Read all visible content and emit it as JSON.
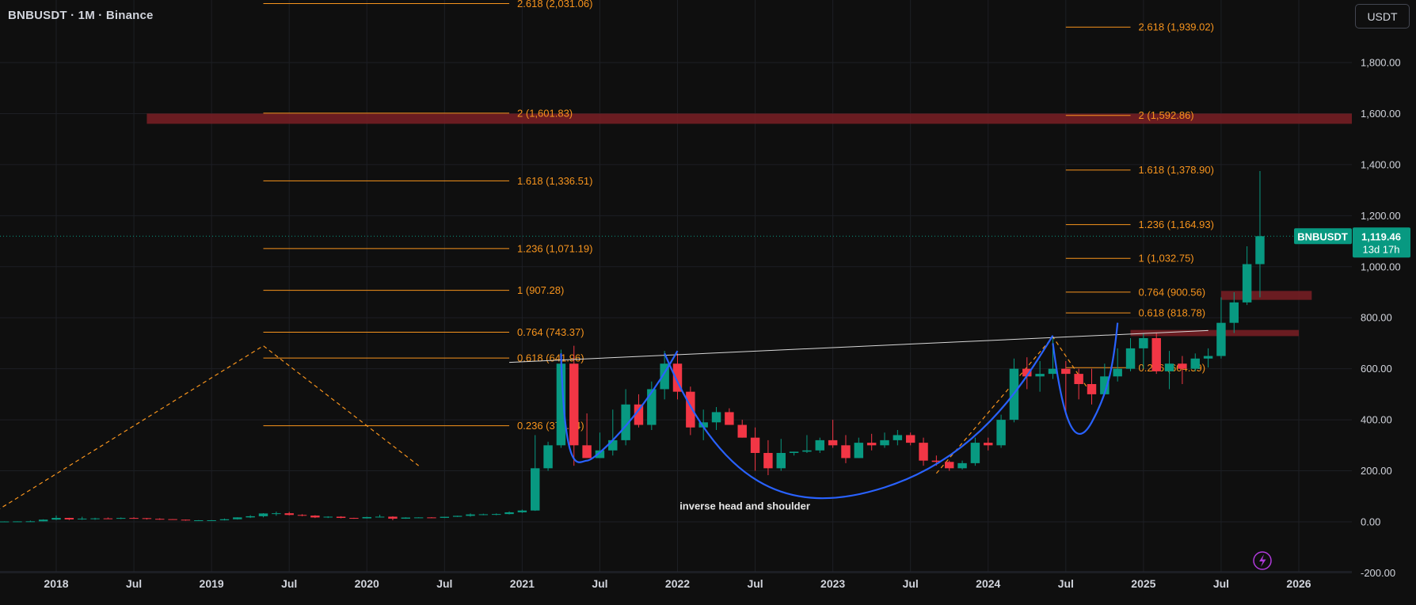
{
  "header": {
    "symbol_title": "BNBUSDT · 1M · Binance",
    "currency_button": "USDT"
  },
  "colors": {
    "background": "#0f0f0f",
    "grid": "#1d1f24",
    "up": "#089981",
    "down": "#f23645",
    "fib": "#f7941d",
    "resistance_zone": "#7a1e24",
    "trendline": "#d8d8d8",
    "pattern_curve": "#2962ff",
    "price_tag": "#089981"
  },
  "chart_data": {
    "type": "candlestick",
    "symbol": "BNBUSDT",
    "interval": "1M",
    "exchange": "Binance",
    "y_axis": {
      "range": [
        -200,
        2050
      ],
      "ticks": [
        -200,
        0,
        200,
        400,
        600,
        800,
        1000,
        1200,
        1400,
        1600,
        1800
      ],
      "tick_labels": [
        "-200.00",
        "0.00",
        "200.00",
        "400.00",
        "600.00",
        "800.00",
        "1,000.00",
        "1,200.00",
        "1,400.00",
        "1,600.00",
        "1,800.00"
      ],
      "position": "right"
    },
    "x_axis": {
      "range": [
        "2017-07",
        "2026-10"
      ],
      "ticks": [
        "2018-01",
        "2018-07",
        "2019-01",
        "2019-07",
        "2020-01",
        "2020-07",
        "2021-01",
        "2021-07",
        "2022-01",
        "2022-07",
        "2023-01",
        "2023-07",
        "2024-01",
        "2024-07",
        "2025-01",
        "2025-07",
        "2026-01"
      ],
      "tick_labels": [
        "2018",
        "Jul",
        "2019",
        "Jul",
        "2020",
        "Jul",
        "2021",
        "Jul",
        "2022",
        "Jul",
        "2023",
        "Jul",
        "2024",
        "Jul",
        "2025",
        "Jul",
        "2026"
      ]
    },
    "grid": true,
    "candles": [
      {
        "t": "2017-08",
        "o": 0.1,
        "h": 1,
        "l": 0.1,
        "c": 0.5
      },
      {
        "t": "2017-09",
        "o": 0.5,
        "h": 2,
        "l": 0.3,
        "c": 1.5
      },
      {
        "t": "2017-10",
        "o": 1.5,
        "h": 2,
        "l": 1,
        "c": 1.8
      },
      {
        "t": "2017-11",
        "o": 1.8,
        "h": 5,
        "l": 1.5,
        "c": 2.1
      },
      {
        "t": "2017-12",
        "o": 2.1,
        "h": 10,
        "l": 2,
        "c": 8.7
      },
      {
        "t": "2018-01",
        "o": 8.7,
        "h": 25,
        "l": 7,
        "c": 15.5
      },
      {
        "t": "2018-02",
        "o": 15.5,
        "h": 16,
        "l": 7,
        "c": 9.6
      },
      {
        "t": "2018-03",
        "o": 9.6,
        "h": 20,
        "l": 8,
        "c": 12.7
      },
      {
        "t": "2018-04",
        "o": 12.7,
        "h": 16,
        "l": 8,
        "c": 13.6
      },
      {
        "t": "2018-05",
        "o": 13.6,
        "h": 17,
        "l": 11,
        "c": 12.6
      },
      {
        "t": "2018-06",
        "o": 12.6,
        "h": 17,
        "l": 11,
        "c": 15.2
      },
      {
        "t": "2018-07",
        "o": 15.2,
        "h": 18,
        "l": 13,
        "c": 14.5
      },
      {
        "t": "2018-08",
        "o": 14.5,
        "h": 15,
        "l": 9,
        "c": 11.8
      },
      {
        "t": "2018-09",
        "o": 11.8,
        "h": 14,
        "l": 8,
        "c": 10.6
      },
      {
        "t": "2018-10",
        "o": 10.6,
        "h": 11,
        "l": 8,
        "c": 8.5
      },
      {
        "t": "2018-11",
        "o": 8.5,
        "h": 9,
        "l": 4.5,
        "c": 5.9
      },
      {
        "t": "2018-12",
        "o": 5.9,
        "h": 7,
        "l": 4.2,
        "c": 6.1
      },
      {
        "t": "2019-01",
        "o": 6.1,
        "h": 7,
        "l": 4.8,
        "c": 6.3
      },
      {
        "t": "2019-02",
        "o": 6.3,
        "h": 13,
        "l": 5.5,
        "c": 10.2
      },
      {
        "t": "2019-03",
        "o": 10.2,
        "h": 18,
        "l": 9,
        "c": 17.5
      },
      {
        "t": "2019-04",
        "o": 17.5,
        "h": 26,
        "l": 15,
        "c": 22
      },
      {
        "t": "2019-05",
        "o": 22,
        "h": 34,
        "l": 18,
        "c": 32.9
      },
      {
        "t": "2019-06",
        "o": 32.9,
        "h": 40,
        "l": 24,
        "c": 33.7
      },
      {
        "t": "2019-07",
        "o": 33.7,
        "h": 39,
        "l": 25,
        "c": 27.1
      },
      {
        "t": "2019-08",
        "o": 27.1,
        "h": 30,
        "l": 22,
        "c": 24.5
      },
      {
        "t": "2019-09",
        "o": 24.5,
        "h": 26,
        "l": 15,
        "c": 17.3
      },
      {
        "t": "2019-10",
        "o": 17.3,
        "h": 22,
        "l": 15,
        "c": 20.2
      },
      {
        "t": "2019-11",
        "o": 20.2,
        "h": 22,
        "l": 14,
        "c": 15.4
      },
      {
        "t": "2019-12",
        "o": 15.4,
        "h": 16,
        "l": 12,
        "c": 13.7
      },
      {
        "t": "2020-01",
        "o": 13.7,
        "h": 20,
        "l": 13,
        "c": 18.8
      },
      {
        "t": "2020-02",
        "o": 18.8,
        "h": 28,
        "l": 17,
        "c": 20.3
      },
      {
        "t": "2020-03",
        "o": 20.3,
        "h": 22,
        "l": 6.4,
        "c": 12.5
      },
      {
        "t": "2020-04",
        "o": 12.5,
        "h": 18,
        "l": 12,
        "c": 16.9
      },
      {
        "t": "2020-05",
        "o": 16.9,
        "h": 18,
        "l": 15,
        "c": 17.4
      },
      {
        "t": "2020-06",
        "o": 17.4,
        "h": 18.5,
        "l": 15,
        "c": 15.7
      },
      {
        "t": "2020-07",
        "o": 15.7,
        "h": 20,
        "l": 15,
        "c": 19.8
      },
      {
        "t": "2020-08",
        "o": 19.8,
        "h": 24,
        "l": 19,
        "c": 23.6
      },
      {
        "t": "2020-09",
        "o": 23.6,
        "h": 33,
        "l": 20,
        "c": 29.1
      },
      {
        "t": "2020-10",
        "o": 29.1,
        "h": 32,
        "l": 26,
        "c": 29.7
      },
      {
        "t": "2020-11",
        "o": 29.7,
        "h": 33,
        "l": 26,
        "c": 30.6
      },
      {
        "t": "2020-12",
        "o": 30.6,
        "h": 41,
        "l": 29,
        "c": 37.4
      },
      {
        "t": "2021-01",
        "o": 37.4,
        "h": 48,
        "l": 35,
        "c": 44.4
      },
      {
        "t": "2021-02",
        "o": 44.4,
        "h": 340,
        "l": 43,
        "c": 210
      },
      {
        "t": "2021-03",
        "o": 210,
        "h": 314,
        "l": 200,
        "c": 300
      },
      {
        "t": "2021-04",
        "o": 300,
        "h": 675,
        "l": 290,
        "c": 620
      },
      {
        "t": "2021-05",
        "o": 620,
        "h": 690,
        "l": 220,
        "c": 300
      },
      {
        "t": "2021-06",
        "o": 300,
        "h": 425,
        "l": 250,
        "c": 250
      },
      {
        "t": "2021-07",
        "o": 250,
        "h": 350,
        "l": 250,
        "c": 280
      },
      {
        "t": "2021-08",
        "o": 280,
        "h": 440,
        "l": 260,
        "c": 320
      },
      {
        "t": "2021-09",
        "o": 320,
        "h": 520,
        "l": 300,
        "c": 460
      },
      {
        "t": "2021-10",
        "o": 460,
        "h": 500,
        "l": 370,
        "c": 380
      },
      {
        "t": "2021-11",
        "o": 380,
        "h": 550,
        "l": 360,
        "c": 520
      },
      {
        "t": "2021-12",
        "o": 520,
        "h": 670,
        "l": 480,
        "c": 620
      },
      {
        "t": "2022-01",
        "o": 620,
        "h": 660,
        "l": 480,
        "c": 510
      },
      {
        "t": "2022-02",
        "o": 510,
        "h": 530,
        "l": 340,
        "c": 370
      },
      {
        "t": "2022-03",
        "o": 370,
        "h": 440,
        "l": 320,
        "c": 390
      },
      {
        "t": "2022-04",
        "o": 390,
        "h": 450,
        "l": 360,
        "c": 430
      },
      {
        "t": "2022-05",
        "o": 430,
        "h": 445,
        "l": 380,
        "c": 380
      },
      {
        "t": "2022-06",
        "o": 380,
        "h": 400,
        "l": 330,
        "c": 330
      },
      {
        "t": "2022-07",
        "o": 330,
        "h": 370,
        "l": 200,
        "c": 270
      },
      {
        "t": "2022-08",
        "o": 270,
        "h": 320,
        "l": 183,
        "c": 210
      },
      {
        "t": "2022-09",
        "o": 210,
        "h": 325,
        "l": 200,
        "c": 270
      },
      {
        "t": "2022-10",
        "o": 270,
        "h": 275,
        "l": 260,
        "c": 275
      },
      {
        "t": "2022-11",
        "o": 275,
        "h": 340,
        "l": 270,
        "c": 280
      },
      {
        "t": "2022-12",
        "o": 280,
        "h": 330,
        "l": 270,
        "c": 320
      },
      {
        "t": "2023-01",
        "o": 320,
        "h": 400,
        "l": 290,
        "c": 300
      },
      {
        "t": "2023-02",
        "o": 300,
        "h": 340,
        "l": 230,
        "c": 250
      },
      {
        "t": "2023-03",
        "o": 250,
        "h": 330,
        "l": 250,
        "c": 310
      },
      {
        "t": "2023-04",
        "o": 310,
        "h": 345,
        "l": 280,
        "c": 300
      },
      {
        "t": "2023-05",
        "o": 300,
        "h": 350,
        "l": 290,
        "c": 320
      },
      {
        "t": "2023-06",
        "o": 320,
        "h": 360,
        "l": 300,
        "c": 340
      },
      {
        "t": "2023-07",
        "o": 340,
        "h": 350,
        "l": 300,
        "c": 310
      },
      {
        "t": "2023-08",
        "o": 310,
        "h": 330,
        "l": 220,
        "c": 240
      },
      {
        "t": "2023-09",
        "o": 240,
        "h": 260,
        "l": 220,
        "c": 235
      },
      {
        "t": "2023-10",
        "o": 235,
        "h": 240,
        "l": 200,
        "c": 210
      },
      {
        "t": "2023-11",
        "o": 210,
        "h": 240,
        "l": 205,
        "c": 230
      },
      {
        "t": "2023-12",
        "o": 230,
        "h": 330,
        "l": 220,
        "c": 310
      },
      {
        "t": "2024-01",
        "o": 310,
        "h": 330,
        "l": 280,
        "c": 300
      },
      {
        "t": "2024-02",
        "o": 300,
        "h": 420,
        "l": 290,
        "c": 400
      },
      {
        "t": "2024-03",
        "o": 400,
        "h": 640,
        "l": 390,
        "c": 600
      },
      {
        "t": "2024-04",
        "o": 600,
        "h": 645,
        "l": 520,
        "c": 570
      },
      {
        "t": "2024-05",
        "o": 570,
        "h": 630,
        "l": 510,
        "c": 580
      },
      {
        "t": "2024-06",
        "o": 580,
        "h": 720,
        "l": 560,
        "c": 600
      },
      {
        "t": "2024-07",
        "o": 600,
        "h": 630,
        "l": 420,
        "c": 580
      },
      {
        "t": "2024-08",
        "o": 580,
        "h": 600,
        "l": 480,
        "c": 540
      },
      {
        "t": "2024-09",
        "o": 540,
        "h": 600,
        "l": 460,
        "c": 500
      },
      {
        "t": "2024-10",
        "o": 500,
        "h": 620,
        "l": 500,
        "c": 570
      },
      {
        "t": "2024-11",
        "o": 570,
        "h": 680,
        "l": 550,
        "c": 600
      },
      {
        "t": "2024-12",
        "o": 600,
        "h": 720,
        "l": 590,
        "c": 680
      },
      {
        "t": "2025-01",
        "o": 680,
        "h": 740,
        "l": 600,
        "c": 720
      },
      {
        "t": "2025-02",
        "o": 720,
        "h": 740,
        "l": 580,
        "c": 590
      },
      {
        "t": "2025-03",
        "o": 590,
        "h": 670,
        "l": 520,
        "c": 620
      },
      {
        "t": "2025-04",
        "o": 620,
        "h": 650,
        "l": 540,
        "c": 600
      },
      {
        "t": "2025-05",
        "o": 600,
        "h": 660,
        "l": 590,
        "c": 640
      },
      {
        "t": "2025-06",
        "o": 640,
        "h": 680,
        "l": 605,
        "c": 650
      },
      {
        "t": "2025-07",
        "o": 650,
        "h": 880,
        "l": 640,
        "c": 780
      },
      {
        "t": "2025-08",
        "o": 780,
        "h": 900,
        "l": 740,
        "c": 860
      },
      {
        "t": "2025-09",
        "o": 860,
        "h": 1080,
        "l": 850,
        "c": 1010
      },
      {
        "t": "2025-10",
        "o": 1010,
        "h": 1375,
        "l": 880,
        "c": 1119.46
      }
    ],
    "fib_levels": [
      {
        "group": "left",
        "ratio": "2.618",
        "price": 2031.06,
        "label": "2.618 (2,031.06)"
      },
      {
        "group": "left",
        "ratio": "2",
        "price": 1601.83,
        "label": "2 (1,601.83)"
      },
      {
        "group": "left",
        "ratio": "1.618",
        "price": 1336.51,
        "label": "1.618 (1,336.51)"
      },
      {
        "group": "left",
        "ratio": "1.236",
        "price": 1071.19,
        "label": "1.236 (1,071.19)"
      },
      {
        "group": "left",
        "ratio": "1",
        "price": 907.28,
        "label": "1 (907.28)"
      },
      {
        "group": "left",
        "ratio": "0.764",
        "price": 743.37,
        "label": "0.764 (743.37)"
      },
      {
        "group": "left",
        "ratio": "0.618",
        "price": 641.96,
        "label": "0.618 (641.96)"
      },
      {
        "group": "left",
        "ratio": "0.236",
        "price": 376.64,
        "label": "0.236 (376.64)"
      },
      {
        "group": "right",
        "ratio": "2.618",
        "price": 1939.02,
        "label": "2.618 (1,939.02)"
      },
      {
        "group": "right",
        "ratio": "2",
        "price": 1592.86,
        "label": "2 (1,592.86)"
      },
      {
        "group": "right",
        "ratio": "1.618",
        "price": 1378.9,
        "label": "1.618 (1,378.90)"
      },
      {
        "group": "right",
        "ratio": "1.236",
        "price": 1164.93,
        "label": "1.236 (1,164.93)"
      },
      {
        "group": "right",
        "ratio": "1",
        "price": 1032.75,
        "label": "1 (1,032.75)"
      },
      {
        "group": "right",
        "ratio": "0.764",
        "price": 900.56,
        "label": "0.764 (900.56)"
      },
      {
        "group": "right",
        "ratio": "0.618",
        "price": 818.78,
        "label": "0.618 (818.78)"
      },
      {
        "group": "right",
        "ratio": "0.236",
        "price": 604.39,
        "label": "0.236 (604.39)"
      }
    ],
    "fib_group_spans": {
      "left": [
        "2019-05",
        "2020-12"
      ],
      "right": [
        "2024-07",
        "2024-12"
      ]
    },
    "fib_extension_paths": [
      [
        {
          "t": "2017-07",
          "p": 0
        },
        {
          "t": "2019-05",
          "p": 690
        },
        {
          "t": "2020-05",
          "p": 220
        }
      ],
      [
        {
          "t": "2023-09",
          "p": 190
        },
        {
          "t": "2024-06",
          "p": 725
        },
        {
          "t": "2024-09",
          "p": 500
        }
      ]
    ],
    "resistance_zones": [
      {
        "from": "2018-08",
        "to": "2026-10",
        "low": 1560,
        "high": 1600
      },
      {
        "from": "2025-07",
        "to": "2026-02",
        "low": 870,
        "high": 905
      },
      {
        "from": "2024-12",
        "to": "2026-01",
        "low": 728,
        "high": 752
      }
    ],
    "trendline": [
      {
        "t": "2020-12",
        "p": 625
      },
      {
        "t": "2025-06",
        "p": 750
      }
    ],
    "pattern_curves": [
      [
        {
          "t": "2021-04",
          "p": 660
        },
        {
          "t": "2021-06",
          "p": 240
        },
        {
          "t": "2021-10",
          "p": 430
        },
        {
          "t": "2022-01",
          "p": 670
        }
      ],
      [
        {
          "t": "2021-12",
          "p": 660
        },
        {
          "t": "2023-05",
          "p": 135
        },
        {
          "t": "2024-06",
          "p": 730
        }
      ],
      [
        {
          "t": "2024-06",
          "p": 700
        },
        {
          "t": "2024-09",
          "p": 390
        },
        {
          "t": "2024-11",
          "p": 780
        }
      ]
    ],
    "annotations": [
      {
        "text": "inverse head and shoulder",
        "t": "2022-03",
        "p": 60
      }
    ],
    "last_price": {
      "symbol": "BNBUSDT",
      "price": 1119.46,
      "label": "1,119.46",
      "countdown": "13d 17h"
    }
  }
}
